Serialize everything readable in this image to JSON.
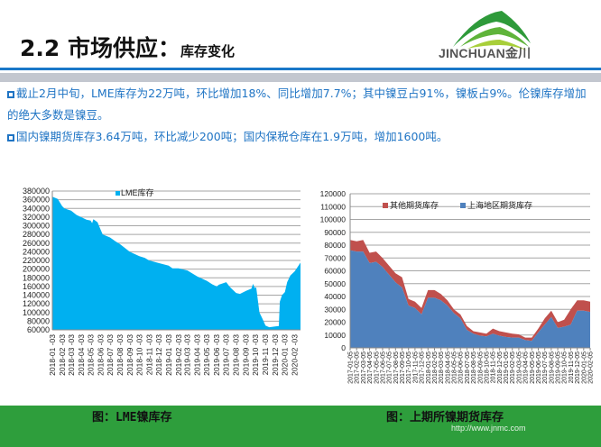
{
  "header": {
    "title_main": "2.2 市场供应：",
    "title_sub": "库存变化",
    "logo_text": "JINCHUAN金川"
  },
  "bullets": [
    "截止2月中旬，LME库存为22万吨，环比增加18%、同比增加7.7%；其中镍豆占91%，镍板占9%。伦镍库存增加的绝大多数是镍豆。",
    "国内镍期货库存3.64万吨，环比减少200吨；国内保税仓库在1.9万吨，增加1600吨。"
  ],
  "footer": {
    "caption_left": "图：LME镍库存",
    "caption_right": "图：上期所镍期货库存",
    "url": "http://www.jnmc.com"
  },
  "colors": {
    "accent_blue": "#1a78c8",
    "text_blue": "#1f74c4",
    "footer_green": "#2e9e3c",
    "lme": "#00b0f0",
    "shanghai": "#4f81bd",
    "other": "#c0504d"
  },
  "chart_data": [
    {
      "type": "area",
      "legend": [
        "LME库存"
      ],
      "legend_position": "top",
      "grid": true,
      "ylim": [
        60000,
        380000
      ],
      "yticks": [
        60000,
        80000,
        100000,
        120000,
        140000,
        160000,
        180000,
        200000,
        220000,
        240000,
        260000,
        280000,
        300000,
        320000,
        340000,
        360000,
        380000
      ],
      "xlim": [
        "2018-01-03",
        "2020-02-21"
      ],
      "xticks": [
        "2018-01-03",
        "2018-02-03",
        "2018-03-03",
        "2018-04-03",
        "2018-05-03",
        "2018-06-03",
        "2018-07-03",
        "2018-08-03",
        "2018-09-03",
        "2018-10-03",
        "2018-11-03",
        "2018-12-03",
        "2019-01-03",
        "2019-02-03",
        "2019-03-03",
        "2019-04-03",
        "2019-05-03",
        "2019-06-03",
        "2019-07-03",
        "2019-08-03",
        "2019-09-03",
        "2019-10-03",
        "2019-11-03",
        "2019-12-03",
        "2020-01-03",
        "2020-02-03"
      ],
      "series": [
        {
          "name": "LME库存",
          "points": [
            [
              "2018-01-03",
              367000
            ],
            [
              "2018-01-20",
              362000
            ],
            [
              "2018-02-03",
              345000
            ],
            [
              "2018-02-10",
              340000
            ],
            [
              "2018-03-03",
              335000
            ],
            [
              "2018-03-20",
              325000
            ],
            [
              "2018-04-03",
              320000
            ],
            [
              "2018-04-20",
              314000
            ],
            [
              "2018-05-03",
              312000
            ],
            [
              "2018-05-08",
              306000
            ],
            [
              "2018-05-12",
              315000
            ],
            [
              "2018-05-25",
              308000
            ],
            [
              "2018-06-03",
              292000
            ],
            [
              "2018-06-10",
              280000
            ],
            [
              "2018-07-03",
              273000
            ],
            [
              "2018-07-20",
              264000
            ],
            [
              "2018-08-03",
              258000
            ],
            [
              "2018-09-03",
              240000
            ],
            [
              "2018-10-03",
              230000
            ],
            [
              "2018-10-20",
              226000
            ],
            [
              "2018-11-03",
              220000
            ],
            [
              "2018-12-03",
              214000
            ],
            [
              "2019-01-03",
              208000
            ],
            [
              "2019-01-15",
              202000
            ],
            [
              "2019-02-03",
              202000
            ],
            [
              "2019-03-03",
              197000
            ],
            [
              "2019-04-03",
              183000
            ],
            [
              "2019-05-03",
              173000
            ],
            [
              "2019-05-20",
              165000
            ],
            [
              "2019-06-03",
              160000
            ],
            [
              "2019-06-10",
              164000
            ],
            [
              "2019-07-03",
              170000
            ],
            [
              "2019-07-15",
              158000
            ],
            [
              "2019-08-03",
              145000
            ],
            [
              "2019-08-15",
              143000
            ],
            [
              "2019-09-03",
              150000
            ],
            [
              "2019-09-20",
              155000
            ],
            [
              "2019-09-25",
              166000
            ],
            [
              "2019-10-01",
              156000
            ],
            [
              "2019-10-05",
              158000
            ],
            [
              "2019-10-15",
              100000
            ],
            [
              "2019-10-25",
              85000
            ],
            [
              "2019-11-03",
              70000
            ],
            [
              "2019-11-15",
              66000
            ],
            [
              "2019-12-03",
              68000
            ],
            [
              "2019-12-15",
              69000
            ],
            [
              "2019-12-18",
              125000
            ],
            [
              "2019-12-25",
              140000
            ],
            [
              "2020-01-03",
              147000
            ],
            [
              "2020-01-10",
              170000
            ],
            [
              "2020-01-20",
              185000
            ],
            [
              "2020-02-03",
              195000
            ],
            [
              "2020-02-12",
              205000
            ],
            [
              "2020-02-21",
              215000
            ]
          ]
        }
      ]
    },
    {
      "type": "area",
      "stacked": true,
      "legend_position": "top",
      "grid": true,
      "ylim": [
        0,
        120000
      ],
      "yticks": [
        0,
        10000,
        20000,
        30000,
        40000,
        50000,
        60000,
        70000,
        80000,
        90000,
        100000,
        110000,
        120000
      ],
      "categories": [
        "2017-01-05",
        "2017-02-05",
        "2017-03-05",
        "2017-04-05",
        "2017-05-05",
        "2017-06-05",
        "2017-07-05",
        "2017-08-05",
        "2017-09-05",
        "2017-10-05",
        "2017-11-05",
        "2017-12-05",
        "2018-01-05",
        "2018-02-05",
        "2018-03-05",
        "2018-04-05",
        "2018-05-05",
        "2018-06-05",
        "2018-07-05",
        "2018-08-05",
        "2018-09-05",
        "2018-10-05",
        "2018-11-05",
        "2018-12-05",
        "2019-01-05",
        "2019-02-05",
        "2019-03-05",
        "2019-04-05",
        "2019-05-05",
        "2019-06-05",
        "2019-07-05",
        "2019-08-05",
        "2019-09-05",
        "2019-10-05",
        "2019-11-05",
        "2019-12-05",
        "2020-01-05",
        "2020-02-05"
      ],
      "series": [
        {
          "name": "上海地区期货库存",
          "values": [
            76000,
            75000,
            75000,
            66000,
            67000,
            63000,
            57000,
            51000,
            47000,
            33000,
            31000,
            26000,
            39000,
            39000,
            37000,
            33000,
            27000,
            23000,
            14000,
            11000,
            9500,
            9000,
            11000,
            9500,
            8500,
            8000,
            8000,
            6000,
            5500,
            12000,
            18000,
            24000,
            15500,
            16500,
            18000,
            29000,
            29000,
            28000
          ]
        },
        {
          "name": "其他期货库存",
          "values": [
            8000,
            8000,
            9000,
            8000,
            8000,
            7000,
            7000,
            7000,
            8000,
            5000,
            5000,
            5000,
            6000,
            6000,
            5000,
            4000,
            3000,
            3000,
            3000,
            2000,
            2500,
            2000,
            4000,
            3500,
            3500,
            3000,
            2500,
            2000,
            2500,
            3000,
            5000,
            5000,
            4500,
            5500,
            12000,
            8000,
            8000,
            8000
          ]
        }
      ]
    }
  ]
}
